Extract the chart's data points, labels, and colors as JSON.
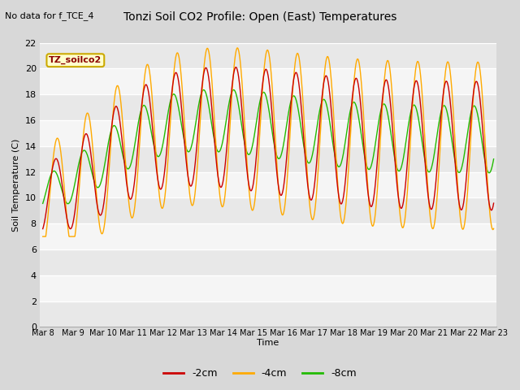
{
  "title": "Tonzi Soil CO2 Profile: Open (East) Temperatures",
  "subtitle": "No data for f_TCE_4",
  "ylabel": "Soil Temperature (C)",
  "xlabel": "Time",
  "ylim": [
    0,
    22
  ],
  "yticks": [
    0,
    2,
    4,
    6,
    8,
    10,
    12,
    14,
    16,
    18,
    20,
    22
  ],
  "fig_bg": "#d8d8d8",
  "plot_bg_light": "#f0f0f0",
  "plot_bg_dark": "#e0e0e0",
  "grid_color": "#ffffff",
  "legend_label": "TZ_soilco2",
  "legend_bg": "#ffffcc",
  "legend_border": "#ccaa00",
  "color_2cm": "#cc0000",
  "color_4cm": "#ffaa00",
  "color_8cm": "#22bb00",
  "label_2cm": "-2cm",
  "label_4cm": "-4cm",
  "label_8cm": "-8cm",
  "day_start": 8,
  "day_end": 23
}
